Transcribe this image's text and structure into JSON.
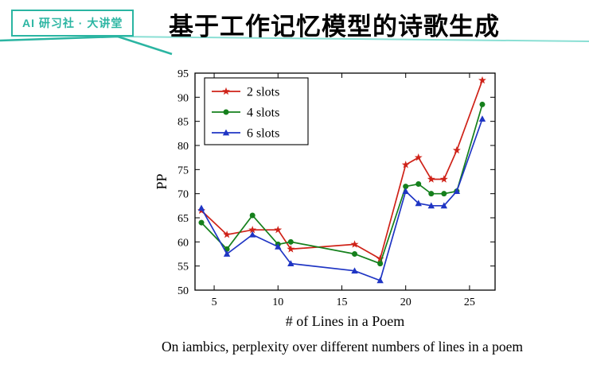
{
  "header": {
    "badge": "AI 研习社 · 大讲堂",
    "title": "基于工作记忆模型的诗歌生成"
  },
  "caption": "On iambics, perplexity over different numbers of lines in a poem",
  "colors": {
    "accent_teal": "#2bb5a2",
    "accent_teal_light": "#8adfd4",
    "series_red": "#cf2218",
    "series_green": "#15801c",
    "series_blue": "#1f35c4"
  },
  "chart_data": {
    "type": "line",
    "title": "",
    "xlabel": "# of Lines in a Poem",
    "ylabel": "PP",
    "xlim": [
      3.5,
      27
    ],
    "ylim": [
      50,
      95
    ],
    "xticks": [
      5,
      10,
      15,
      20,
      25
    ],
    "yticks": [
      50,
      55,
      60,
      65,
      70,
      75,
      80,
      85,
      90,
      95
    ],
    "grid": false,
    "legend_position": "upper-left",
    "x": [
      4,
      6,
      8,
      10,
      11,
      16,
      18,
      20,
      21,
      22,
      23,
      24,
      26
    ],
    "series": [
      {
        "name": "2 slots",
        "color": "#cf2218",
        "marker": "star",
        "values": [
          66.5,
          61.5,
          62.5,
          62.5,
          58.5,
          59.5,
          56.5,
          76,
          77.5,
          73,
          73,
          79,
          93.5
        ]
      },
      {
        "name": "4 slots",
        "color": "#15801c",
        "marker": "circle",
        "values": [
          64,
          58.5,
          65.5,
          59.5,
          60,
          57.5,
          55.5,
          71.5,
          72,
          70,
          70,
          70.5,
          88.5
        ]
      },
      {
        "name": "6 slots",
        "color": "#1f35c4",
        "marker": "triangle",
        "values": [
          67,
          57.5,
          61.5,
          59,
          55.5,
          54,
          52,
          70.5,
          68,
          67.5,
          67.5,
          70.5,
          85.5
        ]
      }
    ]
  }
}
